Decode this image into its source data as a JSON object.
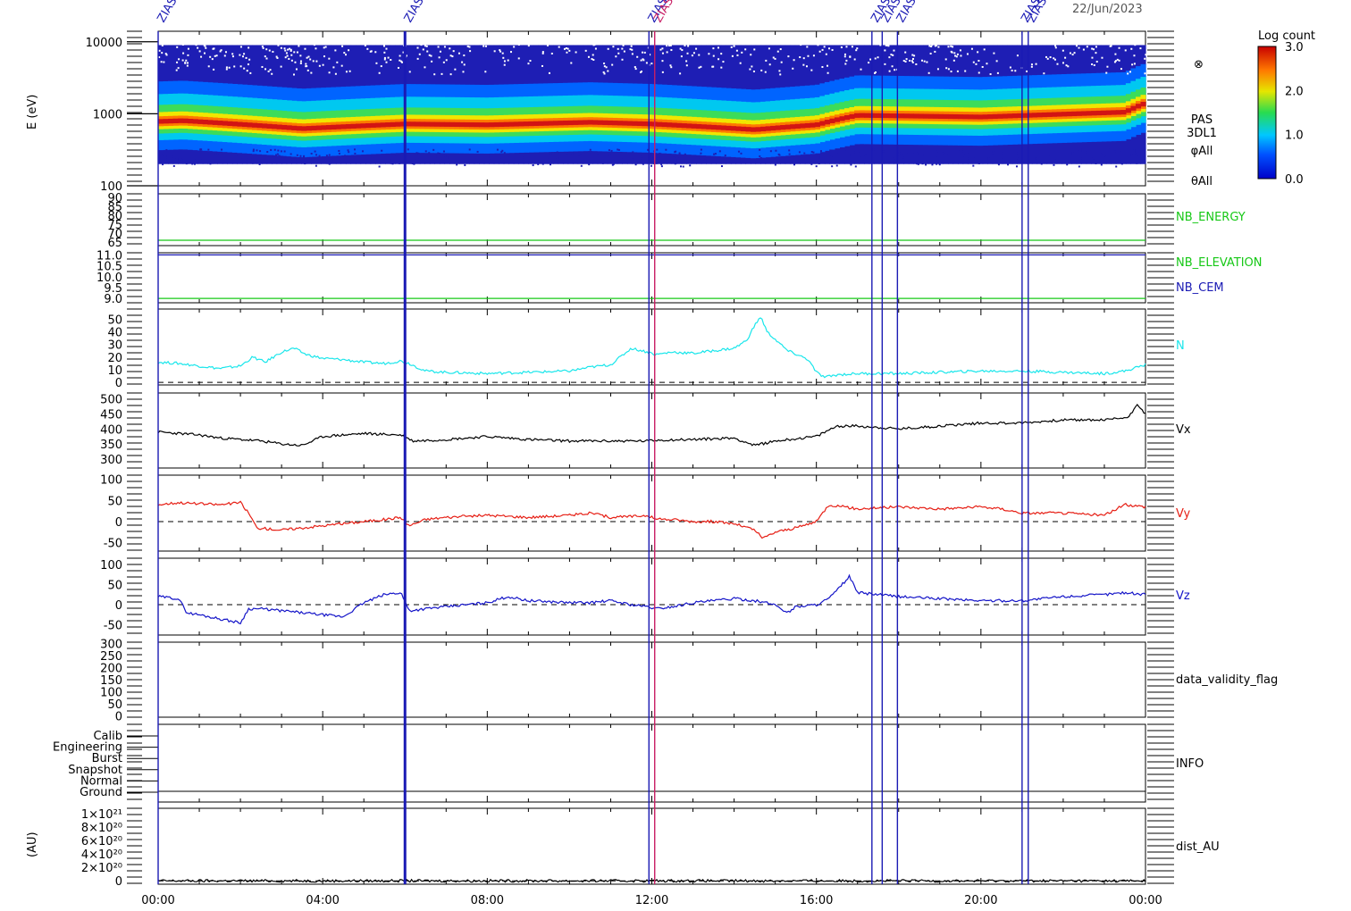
{
  "date_label": "22/Jun/2023",
  "markers": [
    {
      "label": "ZIAS",
      "hour": 0.0,
      "color": "#1a1ab4"
    },
    {
      "label": "ZIAS",
      "hour": 6.0,
      "color": "#1a1ab4"
    },
    {
      "label": "ZIAS",
      "hour": 11.93,
      "color": "#1a1ab4"
    },
    {
      "label": "ZIAS",
      "hour": 12.07,
      "color": "#c81e64"
    },
    {
      "label": "ZIAS",
      "hour": 17.35,
      "color": "#1a1ab4"
    },
    {
      "label": "ZIAS",
      "hour": 17.6,
      "color": "#1a1ab4"
    },
    {
      "label": "ZIAS",
      "hour": 17.97,
      "color": "#1a1ab4"
    },
    {
      "label": "ZIAS",
      "hour": 21.0,
      "color": "#1a1ab4"
    },
    {
      "label": "ZIAS",
      "hour": 21.15,
      "color": "#1a1ab4"
    }
  ],
  "colorbar": {
    "title": "Log count",
    "ticks": [
      "3.0",
      "2.0",
      "1.0",
      "0.0"
    ],
    "range": [
      0.0,
      3.0
    ]
  },
  "spectrogram": {
    "ylabel": "E (eV)",
    "ticks": [
      "10000",
      "1000",
      "100"
    ],
    "symbol": "⊗",
    "labels": [
      "PAS",
      "3DL1",
      "φAll",
      "θAll"
    ]
  },
  "x_axis": {
    "ticks": [
      "00:00",
      "04:00",
      "08:00",
      "12:00",
      "16:00",
      "20:00",
      "00:00"
    ],
    "range_hours": [
      0,
      24
    ]
  },
  "chart_data": [
    {
      "type": "heatmap",
      "name": "PAS 3DL1",
      "ylabel": "E (eV)",
      "yscale": "log",
      "ylim": [
        100,
        14000
      ],
      "zlabel": "Log count",
      "zlim": [
        0.0,
        3.0
      ],
      "peak_energy_eV": {
        "x": [
          0,
          0.6,
          2.2,
          3.5,
          6.0,
          8.0,
          10.5,
          12.0,
          14.5,
          16.0,
          17.0,
          20.0,
          23.5,
          24.0
        ],
        "y": [
          780,
          800,
          700,
          620,
          720,
          700,
          760,
          720,
          600,
          700,
          950,
          900,
          1050,
          1400
        ]
      },
      "count_range_eV": [
        200,
        9000
      ]
    },
    {
      "type": "line",
      "series": [
        {
          "name": "NB_ENERGY",
          "x": [
            0,
            24
          ],
          "y": [
            66,
            66
          ],
          "color": "#16c816"
        }
      ],
      "ylim": [
        63,
        92
      ],
      "ticks": [
        "90",
        "85",
        "80",
        "75",
        "70",
        "65"
      ]
    },
    {
      "type": "line",
      "series": [
        {
          "name": "NB_ELEVATION",
          "x": [
            0,
            24
          ],
          "y": [
            9.0,
            9.0
          ],
          "color": "#16c816"
        },
        {
          "name": "NB_CEM",
          "x": [
            0,
            24
          ],
          "y": [
            11.0,
            11.0
          ],
          "color": "#1a1ab4"
        }
      ],
      "ylim": [
        8.8,
        11.1
      ],
      "ticks": [
        "11.0",
        "10.5",
        "10.0",
        "9.5",
        "9.0"
      ]
    },
    {
      "type": "line",
      "series": [
        {
          "name": "N",
          "color": "#19e6eb",
          "x": [
            0,
            0.5,
            1,
            1.5,
            2,
            2.3,
            2.6,
            3,
            3.3,
            3.6,
            4,
            4.5,
            5,
            5.5,
            5.9,
            6.1,
            6.5,
            7,
            8,
            9,
            10,
            10.5,
            11,
            11.5,
            11.9,
            12.1,
            12.5,
            13,
            13.5,
            14,
            14.3,
            14.5,
            14.65,
            14.8,
            15,
            15.3,
            15.6,
            15.8,
            16,
            16.2,
            16.5,
            17,
            18,
            19,
            20,
            21,
            22,
            23,
            23.5,
            24
          ],
          "y": [
            16,
            15,
            13,
            11,
            13,
            20,
            16,
            24,
            27,
            22,
            19,
            18,
            16,
            15,
            17,
            15,
            9,
            8,
            7,
            8,
            9,
            12,
            14,
            27,
            24,
            22,
            24,
            23,
            25,
            27,
            33,
            45,
            52,
            40,
            34,
            25,
            21,
            18,
            8,
            4,
            6,
            7,
            7,
            8,
            9,
            9,
            8,
            7,
            9,
            14
          ]
        }
      ],
      "ylim": [
        -2,
        58
      ],
      "ticks": [
        "50",
        "40",
        "30",
        "20",
        "10",
        "0"
      ],
      "zero_line": true
    },
    {
      "type": "line",
      "series": [
        {
          "name": "Vx",
          "color": "#000000",
          "x": [
            0,
            0.5,
            1,
            1.5,
            2,
            2.5,
            3,
            3.5,
            4,
            5,
            5.9,
            6.2,
            7,
            8,
            9,
            10,
            11,
            11.9,
            12.1,
            13,
            14,
            14.5,
            15,
            16,
            16.5,
            17,
            18,
            19,
            20,
            21,
            22,
            23,
            23.6,
            23.8,
            24
          ],
          "y": [
            390,
            385,
            380,
            370,
            365,
            360,
            350,
            345,
            375,
            385,
            380,
            360,
            365,
            375,
            365,
            360,
            360,
            360,
            363,
            365,
            370,
            345,
            360,
            375,
            410,
            410,
            400,
            410,
            420,
            420,
            430,
            430,
            440,
            485,
            450
          ]
        }
      ],
      "ylim": [
        270,
        520
      ],
      "ticks": [
        "500",
        "450",
        "400",
        "350",
        "300"
      ]
    },
    {
      "type": "line",
      "series": [
        {
          "name": "Vy",
          "color": "#e61e14",
          "x": [
            0,
            0.5,
            1,
            1.5,
            2,
            2.2,
            2.4,
            3,
            3.5,
            4,
            4.5,
            5,
            5.5,
            5.9,
            6.1,
            6.5,
            7,
            8,
            9,
            10,
            10.5,
            11,
            11.5,
            11.9,
            12.1,
            12.5,
            13,
            13.5,
            14,
            14.5,
            14.7,
            15,
            15.5,
            16,
            16.3,
            17,
            18,
            19,
            20,
            20.5,
            21,
            22,
            23,
            23.5,
            24
          ],
          "y": [
            40,
            45,
            42,
            40,
            45,
            20,
            -15,
            -20,
            -15,
            -10,
            -5,
            0,
            5,
            10,
            -10,
            5,
            10,
            15,
            10,
            15,
            20,
            10,
            12,
            15,
            5,
            5,
            0,
            0,
            -5,
            -20,
            -40,
            -25,
            -15,
            0,
            40,
            30,
            35,
            30,
            35,
            30,
            20,
            20,
            15,
            40,
            35
          ]
        }
      ],
      "ylim": [
        -70,
        110
      ],
      "ticks": [
        "100",
        "50",
        "0",
        "-50"
      ],
      "zero_line": true
    },
    {
      "type": "line",
      "series": [
        {
          "name": "Vz",
          "color": "#1414c8",
          "x": [
            0,
            0.5,
            0.7,
            1,
            1.5,
            2,
            2.2,
            2.5,
            3,
            3.5,
            4,
            4.5,
            5,
            5.5,
            5.9,
            6.1,
            6.5,
            7,
            8,
            8.5,
            9,
            10,
            10.5,
            11,
            11.5,
            11.9,
            12.1,
            12.5,
            13,
            13.5,
            14,
            14.5,
            15,
            15.3,
            15.5,
            16,
            16.3,
            16.5,
            16.8,
            17,
            17.5,
            18,
            19,
            20,
            21,
            22,
            23,
            23.5,
            24
          ],
          "y": [
            20,
            15,
            -20,
            -25,
            -35,
            -45,
            -10,
            -10,
            -15,
            -20,
            -25,
            -30,
            5,
            25,
            30,
            -15,
            -10,
            -5,
            5,
            20,
            10,
            5,
            5,
            10,
            0,
            -5,
            -10,
            -5,
            5,
            10,
            15,
            10,
            0,
            -20,
            -5,
            0,
            15,
            35,
            70,
            30,
            25,
            20,
            15,
            10,
            10,
            20,
            25,
            30,
            25
          ]
        }
      ],
      "ylim": [
        -75,
        115
      ],
      "ticks": [
        "100",
        "50",
        "0",
        "-50"
      ],
      "zero_line": true
    },
    {
      "type": "line",
      "series": [
        {
          "name": "data_validity_flag",
          "x": [],
          "y": []
        }
      ],
      "ylim": [
        -5,
        305
      ],
      "ticks": [
        "300",
        "250",
        "200",
        "150",
        "100",
        "50",
        "0"
      ]
    },
    {
      "type": "line",
      "series": [
        {
          "name": "INFO",
          "x": [],
          "y": []
        }
      ],
      "ticks": [
        "Calib",
        "Engineering",
        "Burst",
        "Snapshot",
        "Normal",
        "Ground"
      ]
    },
    {
      "type": "line",
      "series": [
        {
          "name": "dist_AU",
          "x": [
            0,
            24
          ],
          "y": [
            0,
            0
          ],
          "color": "#000000"
        }
      ],
      "ylabel": "(AU)",
      "ylim": [
        -5e+19,
        1.08e+21
      ],
      "ticks": [
        "1×10²¹",
        "8×10²⁰",
        "6×10²⁰",
        "4×10²⁰",
        "2×10²⁰",
        "0"
      ],
      "zero_line": true
    }
  ]
}
